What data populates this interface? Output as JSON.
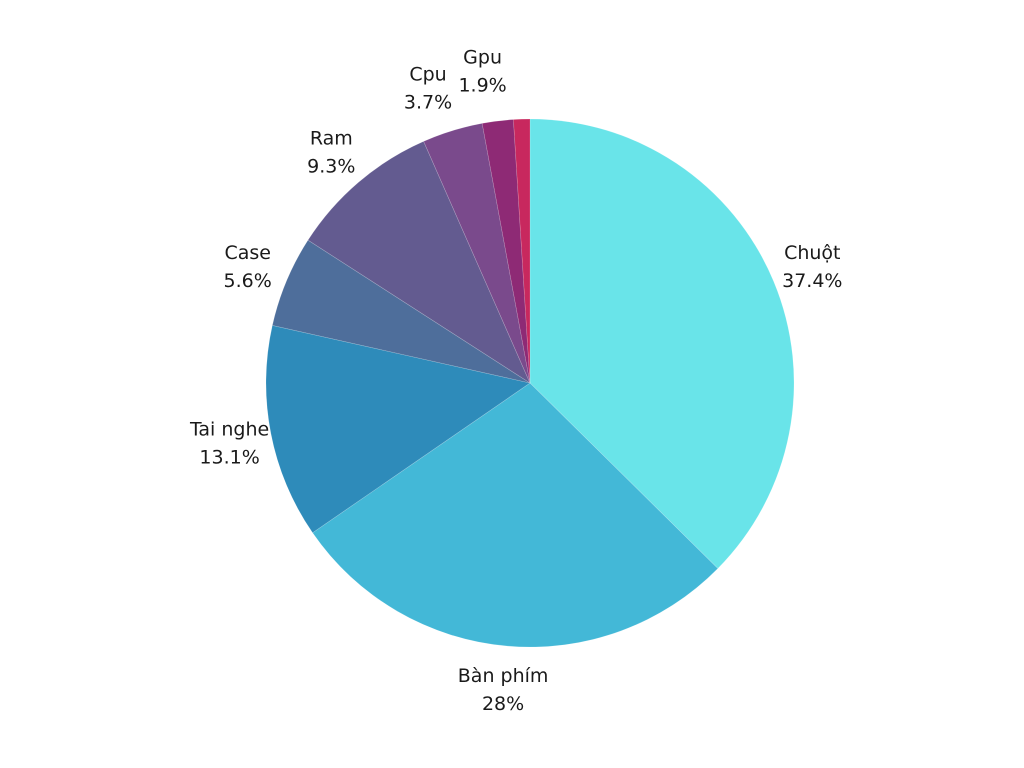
{
  "chart_data": {
    "type": "pie",
    "start": "12 o'clock",
    "direction": "clockwise",
    "slices": [
      {
        "label": "Chuột",
        "value": 37.4,
        "display": "37.4%",
        "color": "#69E4E9"
      },
      {
        "label": "Bàn phím",
        "value": 28.0,
        "display": "28%",
        "color": "#43B8D7"
      },
      {
        "label": "Tai nghe",
        "value": 13.1,
        "display": "13.1%",
        "color": "#2E8BBA"
      },
      {
        "label": "Case",
        "value": 5.6,
        "display": "5.6%",
        "color": "#4E6E9B"
      },
      {
        "label": "Ram",
        "value": 9.3,
        "display": "9.3%",
        "color": "#635B90"
      },
      {
        "label": "Cpu",
        "value": 3.7,
        "display": "3.7%",
        "color": "#7A4A8C"
      },
      {
        "label": "Gpu",
        "value": 1.9,
        "display": "1.9%",
        "color": "#8E2A75"
      },
      {
        "label": "",
        "value": 1.0,
        "display": "",
        "color": "#C8285E"
      }
    ]
  }
}
